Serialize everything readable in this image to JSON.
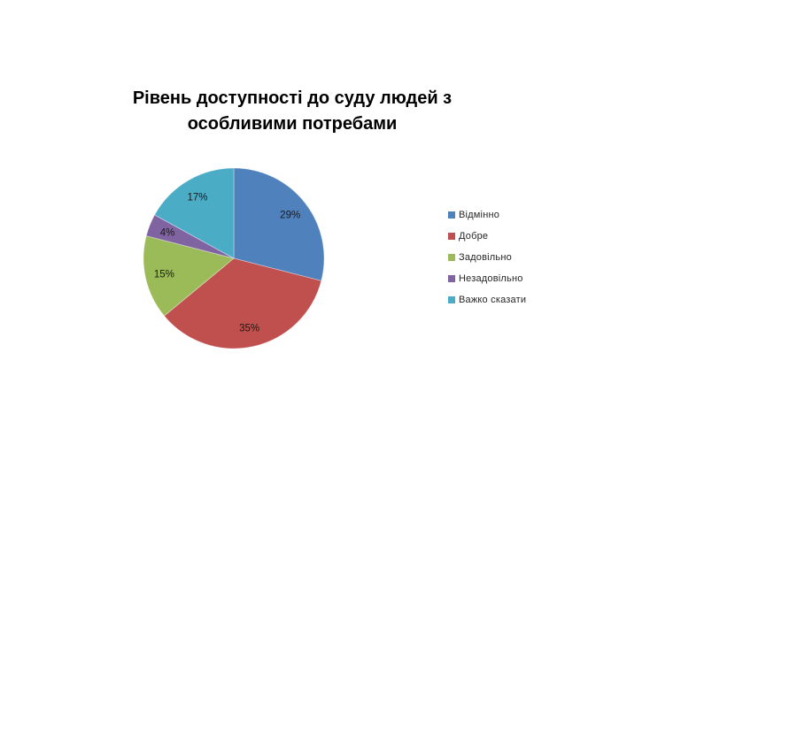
{
  "chart_data": {
    "type": "pie",
    "title": "Рівень доступності до суду людей з особливими потребами",
    "title_lines": [
      "Рівень доступності до суду людей з",
      "особливими потребами"
    ],
    "categories": [
      "Відмінно",
      "Добре",
      "Задовільно",
      "Незадовільно",
      "Важко сказати"
    ],
    "values": [
      29,
      35,
      15,
      4,
      17
    ],
    "data_labels": [
      "29%",
      "35%",
      "15%",
      "4%",
      "17%"
    ],
    "colors": [
      "#4F81BD",
      "#C0504D",
      "#9BBB59",
      "#8064A2",
      "#4BACC6"
    ],
    "start_angle_deg": 0,
    "direction": "clockwise",
    "legend_position": "right",
    "label_color": "#1a1a1a",
    "title_color": "#000000",
    "background": "#FFFFFF"
  }
}
